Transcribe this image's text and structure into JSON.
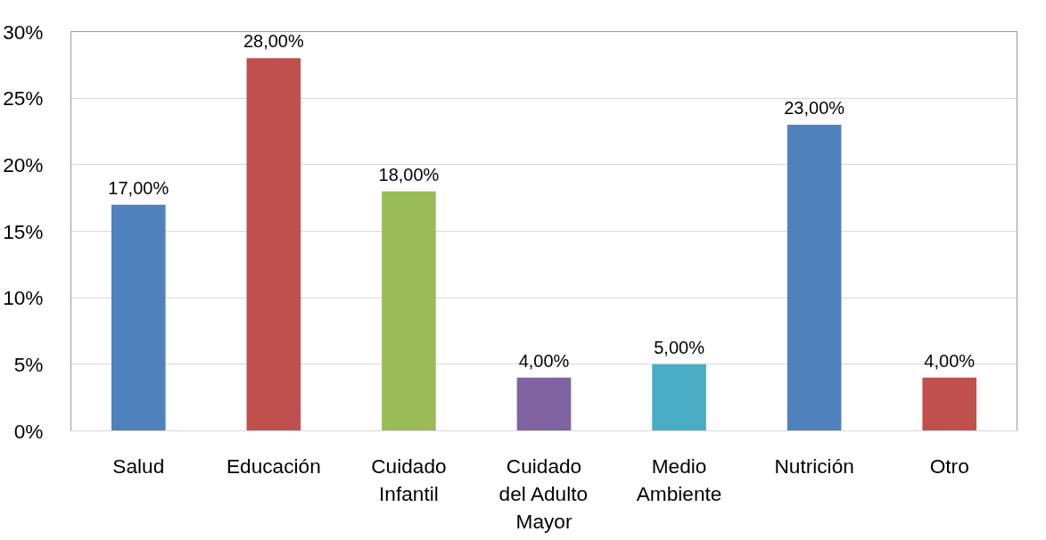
{
  "chart_data": {
    "type": "bar",
    "categories": [
      "Salud",
      "Educación",
      "Cuidado Infantil",
      "Cuidado del Adulto Mayor",
      "Medio Ambiente",
      "Nutrición",
      "Otro"
    ],
    "values": [
      17,
      28,
      18,
      4,
      5,
      23,
      4
    ],
    "colors": [
      "#4f81bd",
      "#c0504d",
      "#9bbb59",
      "#8064a2",
      "#4bacc6",
      "#4f81bd",
      "#c0504d"
    ],
    "value_labels": [
      "17,00%",
      "28,00%",
      "18,00%",
      "4,00%",
      "5,00%",
      "23,00%",
      "4,00%"
    ],
    "ylim": [
      0,
      30
    ],
    "yticks": [
      {
        "value": 0,
        "label": "0%"
      },
      {
        "value": 5,
        "label": "5%"
      },
      {
        "value": 10,
        "label": "10%"
      },
      {
        "value": 15,
        "label": "15%"
      },
      {
        "value": 20,
        "label": "20%"
      },
      {
        "value": 25,
        "label": "25%"
      },
      {
        "value": 30,
        "label": "30%"
      }
    ],
    "grid": "y"
  }
}
